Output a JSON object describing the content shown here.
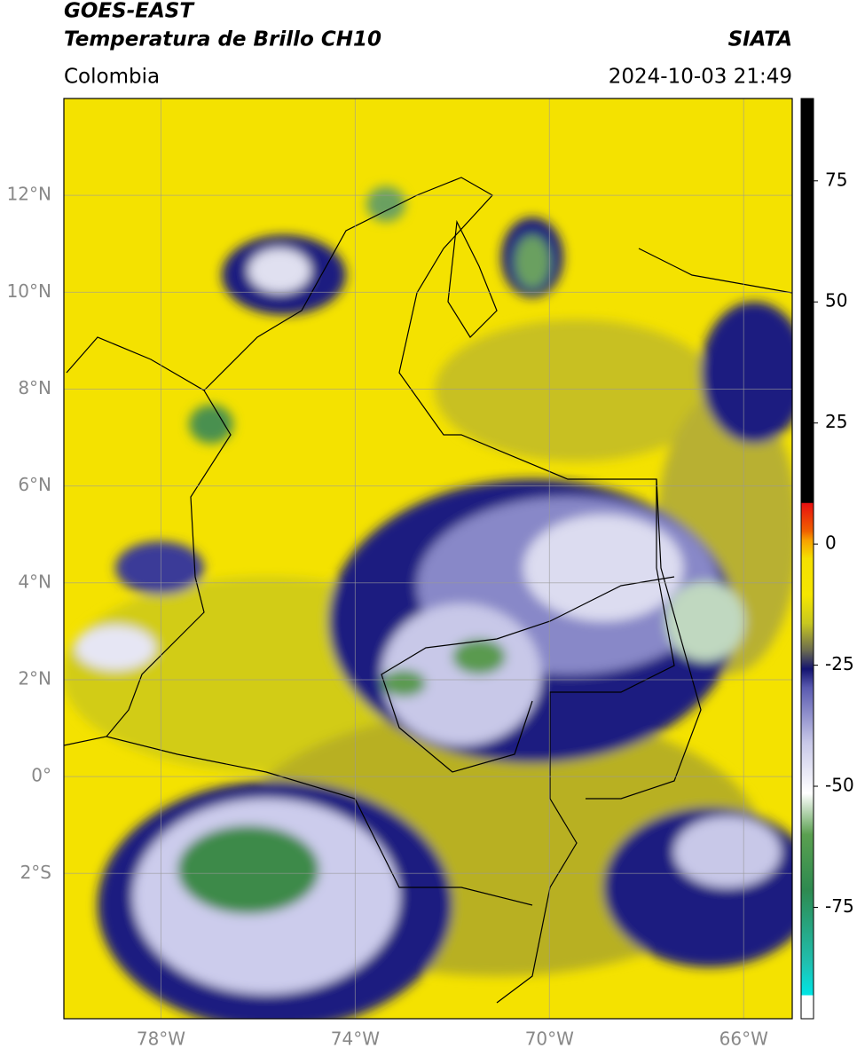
{
  "header": {
    "title_line1": "GOES-EAST",
    "title_line2": "Temperatura de Brillo CH10",
    "region": "Colombia",
    "source": "SIATA",
    "timestamp": "2024-10-03 21:49"
  },
  "map": {
    "xlim": [
      -80,
      -65
    ],
    "ylim": [
      -5,
      14
    ],
    "grid": true,
    "xticks": [
      {
        "value": -78,
        "label": "78°W"
      },
      {
        "value": -74,
        "label": "74°W"
      },
      {
        "value": -70,
        "label": "70°W"
      },
      {
        "value": -66,
        "label": "66°W"
      }
    ],
    "yticks": [
      {
        "value": 12,
        "label": "12°N"
      },
      {
        "value": 10,
        "label": "10°N"
      },
      {
        "value": 8,
        "label": "8°N"
      },
      {
        "value": 6,
        "label": "6°N"
      },
      {
        "value": 4,
        "label": "4°N"
      },
      {
        "value": 2,
        "label": "2°N"
      },
      {
        "value": 0,
        "label": "0°"
      },
      {
        "value": -2,
        "label": "2°S"
      }
    ]
  },
  "colorbar": {
    "ylim": [
      -98,
      92
    ],
    "yticks": [
      75,
      50,
      25,
      0,
      -25,
      -50,
      -75
    ]
  }
}
